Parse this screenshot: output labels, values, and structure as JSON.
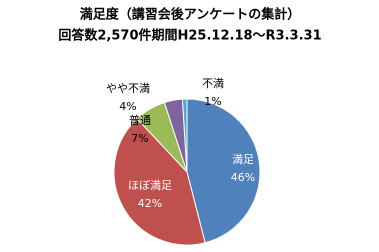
{
  "chart_data": {
    "type": "pie",
    "title": "満足度（講習会後アンケートの集計）",
    "subtitle": "回答数2,570件期間H25.12.18～R3.3.31",
    "categories": [
      "満足",
      "ほぼ満足",
      "普通",
      "やや不満",
      "不満"
    ],
    "values": [
      46,
      42,
      7,
      4,
      1
    ],
    "value_labels": [
      "46%",
      "42%",
      "7%",
      "4%",
      "1%"
    ],
    "colors": [
      "#4f81bd",
      "#c0504d",
      "#9bbb59",
      "#8064a2",
      "#4bacc6"
    ]
  }
}
